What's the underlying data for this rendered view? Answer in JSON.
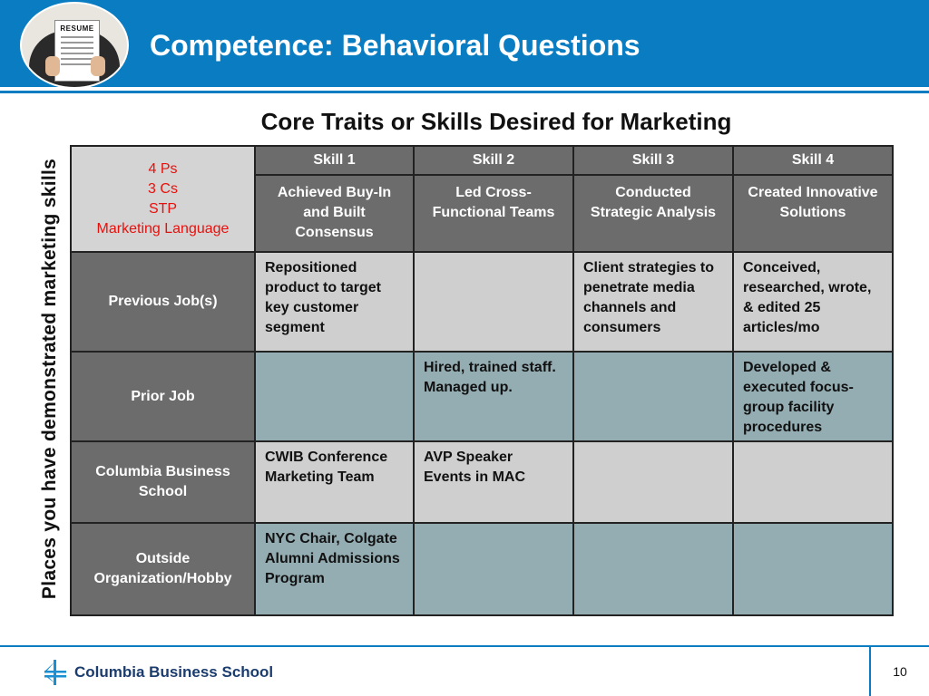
{
  "slide": {
    "title": "Competence: Behavioral Questions",
    "subtitle": "Core Traits or Skills Desired for Marketing",
    "side_label": "Places you have demonstrated marketing skills",
    "photo_sign": "RESUME"
  },
  "table": {
    "corner": [
      "4 Ps",
      "3 Cs",
      "STP",
      "Marketing Language"
    ],
    "skills": [
      {
        "label": "Skill 1",
        "desc": "Achieved Buy-In and Built Consensus"
      },
      {
        "label": "Skill 2",
        "desc": "Led Cross-Functional Teams"
      },
      {
        "label": "Skill 3",
        "desc": "Conducted Strategic Analysis"
      },
      {
        "label": "Skill 4",
        "desc": "Created Innovative Solutions"
      }
    ],
    "rows": [
      {
        "label": "Previous Job(s)",
        "cells": [
          "Repositioned product to target key customer segment",
          "",
          "Client strategies to penetrate media channels and consumers",
          "Conceived, researched, wrote, & edited 25 articles/mo"
        ]
      },
      {
        "label": "Prior Job",
        "cells": [
          "",
          "Hired, trained staff. Managed up.",
          "",
          "Developed & executed focus-group facility procedures"
        ]
      },
      {
        "label": "Columbia Business School",
        "cells": [
          "CWIB Conference Marketing Team",
          "AVP Speaker Events in MAC",
          "",
          ""
        ]
      },
      {
        "label": "Outside Organization/Hobby",
        "cells": [
          "NYC Chair, Colgate Alumni Admissions Program",
          "",
          "",
          ""
        ]
      }
    ]
  },
  "footer": {
    "logo_text": "Columbia Business School",
    "logo_icon": "columbia-crown-logo-icon",
    "page_number": "10"
  },
  "colors": {
    "brand_blue": "#0a7dc2",
    "header_gray": "#6c6c6c",
    "light_cell": "#cfcfcf",
    "teal_cell": "#94adb2",
    "corner_text": "#e8100c"
  }
}
